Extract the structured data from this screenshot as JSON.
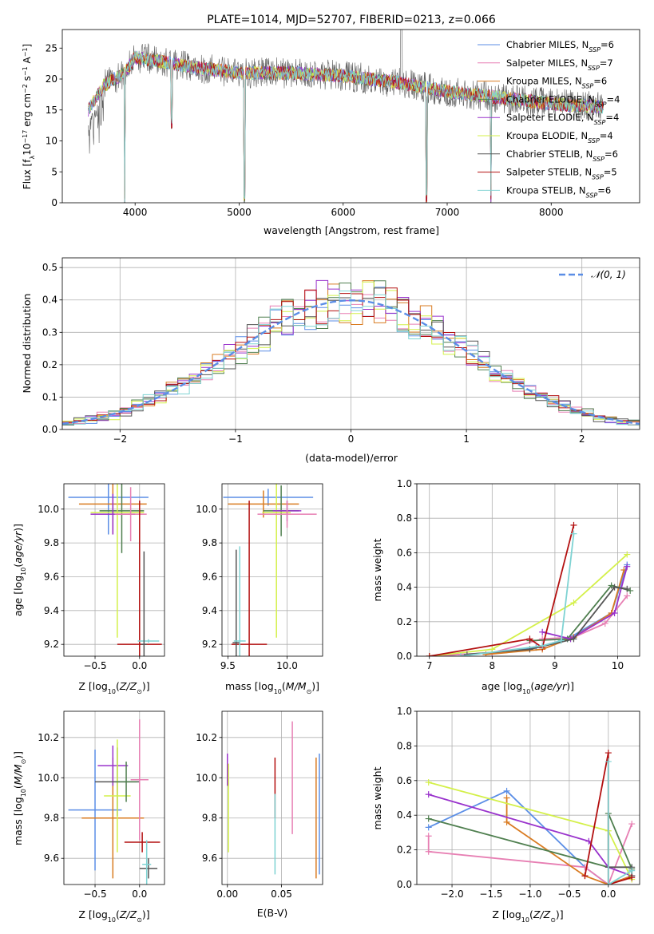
{
  "chart_data": [
    {
      "id": "spectrum",
      "type": "line",
      "title": "PLATE=1014, MJD=52707, FIBERID=0213, z=0.066",
      "xlabel": "wavelength [Angstrom, rest frame]",
      "ylabel": "Flux [f_λ 10^-17 erg cm^-2 s^-1 A^-1]",
      "xlim": [
        3300,
        8850
      ],
      "ylim": [
        0,
        28
      ],
      "xticks": [
        4000,
        5000,
        6000,
        7000,
        8000
      ],
      "yticks": [
        0,
        5,
        10,
        15,
        20,
        25
      ],
      "grid": false,
      "legend_position": "top-right",
      "series": [
        {
          "name": "Chabrier MILES, N_SSP=6",
          "color": "#5b8ee6"
        },
        {
          "name": "Salpeter MILES, N_SSP=7",
          "color": "#e77fb3"
        },
        {
          "name": "Kroupa MILES, N_SSP=6",
          "color": "#d97b21"
        },
        {
          "name": "Chabrier ELODIE, N_SSP=4",
          "color": "#4f7f4f"
        },
        {
          "name": "Salpeter ELODIE, N_SSP=4",
          "color": "#9932cc"
        },
        {
          "name": "Kroupa ELODIE, N_SSP=4",
          "color": "#d4f04a"
        },
        {
          "name": "Chabrier STELIB, N_SSP=6",
          "color": "#555555"
        },
        {
          "name": "Salpeter STELIB, N_SSP=5",
          "color": "#b31010"
        },
        {
          "name": "Kroupa STELIB, N_SSP=6",
          "color": "#7fd3d3"
        }
      ],
      "data_trend": [
        [
          3550,
          15
        ],
        [
          3700,
          19
        ],
        [
          3900,
          21
        ],
        [
          4000,
          23.5
        ],
        [
          4200,
          23
        ],
        [
          4500,
          22
        ],
        [
          5000,
          21
        ],
        [
          5500,
          21
        ],
        [
          6000,
          20.5
        ],
        [
          6500,
          19.5
        ],
        [
          7000,
          18
        ],
        [
          7500,
          17
        ],
        [
          8000,
          16
        ],
        [
          8500,
          15.5
        ]
      ],
      "dips": [
        [
          3900,
          0
        ],
        [
          4350,
          12
        ],
        [
          5050,
          0
        ],
        [
          6800,
          0
        ],
        [
          7420,
          0
        ]
      ],
      "noise_amplitude": 2.5
    },
    {
      "id": "residual",
      "type": "line",
      "xlabel": "(data-model)/error",
      "ylabel": "Normed distribution",
      "xlim": [
        -2.5,
        2.5
      ],
      "ylim": [
        0,
        0.53
      ],
      "xticks": [
        -2,
        -1,
        0,
        1,
        2
      ],
      "yticks": [
        0.0,
        0.1,
        0.2,
        0.3,
        0.4,
        0.5
      ],
      "grid": true,
      "legend_position": "top-right",
      "legend": "𝒩(0, 1)",
      "gaussian": {
        "mean": 0,
        "sigma": 1,
        "color": "#5b8ee6"
      },
      "bin_width": 0.1,
      "histogram_colors": [
        "#5b8ee6",
        "#e77fb3",
        "#d97b21",
        "#4f7f4f",
        "#9932cc",
        "#d4f04a",
        "#555555",
        "#b31010",
        "#7fd3d3"
      ]
    },
    {
      "id": "age_vs_Z",
      "type": "scatter",
      "xlabel": "Z [log10(Z/Z⊙)]",
      "ylabel": "age  [log10(age/yr)]",
      "xlim": [
        -0.85,
        0.28
      ],
      "ylim": [
        9.13,
        10.15
      ],
      "xticks": [
        -0.5,
        0.0
      ],
      "yticks": [
        9.2,
        9.4,
        9.6,
        9.8,
        10.0
      ],
      "grid": true,
      "points": [
        {
          "x": -0.35,
          "y": 10.07,
          "xerr": 0.45,
          "yerr": 0.22,
          "c": "#5b8ee6"
        },
        {
          "x": -0.3,
          "y": 10.03,
          "xerr": 0.38,
          "yerr": 0.18,
          "c": "#d97b21"
        },
        {
          "x": -0.2,
          "y": 9.99,
          "xerr": 0.25,
          "yerr": 0.25,
          "c": "#4f7f4f"
        },
        {
          "x": -0.25,
          "y": 9.98,
          "xerr": 0.3,
          "yerr": 0.74,
          "c": "#d4f04a"
        },
        {
          "x": -0.3,
          "y": 9.97,
          "xerr": 0.25,
          "yerr": 0.12,
          "c": "#9932cc"
        },
        {
          "x": -0.1,
          "y": 9.97,
          "xerr": 0.18,
          "yerr": 0.16,
          "c": "#e77fb3"
        },
        {
          "x": 0.0,
          "y": 9.2,
          "xerr": 0.25,
          "yerr": 0.85,
          "c": "#b31010"
        },
        {
          "x": 0.1,
          "y": 9.22,
          "xerr": 0.12,
          "yerr": 0.01,
          "c": "#7fd3d3"
        },
        {
          "x": 0.05,
          "y": 9.2,
          "xerr": 0.03,
          "yerr": 0.55,
          "c": "#555555"
        }
      ]
    },
    {
      "id": "age_vs_mass",
      "type": "scatter",
      "xlabel": "mass [log10(M/M⊙)]",
      "xlim": [
        9.45,
        10.3
      ],
      "ylim": [
        9.13,
        10.15
      ],
      "xticks": [
        9.5,
        10.0
      ],
      "yticks": [
        9.2,
        9.4,
        9.6,
        9.8,
        10.0
      ],
      "grid": true,
      "points": [
        {
          "x": 9.84,
          "y": 10.07,
          "xerr": 0.38,
          "yerr": 0.05,
          "c": "#5b8ee6"
        },
        {
          "x": 9.8,
          "y": 10.03,
          "xerr": 0.3,
          "yerr": 0.08,
          "c": "#d97b21"
        },
        {
          "x": 9.95,
          "y": 9.99,
          "xerr": 0.15,
          "yerr": 0.15,
          "c": "#4f7f4f"
        },
        {
          "x": 9.91,
          "y": 9.98,
          "xerr": 0.12,
          "yerr": 0.74,
          "c": "#d4f04a"
        },
        {
          "x": 10.0,
          "y": 9.99,
          "xerr": 0.12,
          "yerr": 0.06,
          "c": "#9932cc"
        },
        {
          "x": 10.0,
          "y": 9.97,
          "xerr": 0.25,
          "yerr": 0.08,
          "c": "#e77fb3"
        },
        {
          "x": 9.68,
          "y": 9.2,
          "xerr": 0.15,
          "yerr": 0.85,
          "c": "#b31010"
        },
        {
          "x": 9.57,
          "y": 9.21,
          "xerr": 0.03,
          "yerr": 0.55,
          "c": "#555555"
        },
        {
          "x": 9.6,
          "y": 9.22,
          "xerr": 0.05,
          "yerr": 0.56,
          "c": "#7fd3d3"
        }
      ]
    },
    {
      "id": "weight_vs_age",
      "type": "line",
      "xlabel": "age  [log10(age/yr)]",
      "ylabel": "mass weight",
      "xlim": [
        6.8,
        10.35
      ],
      "ylim": [
        0.0,
        1.0
      ],
      "xticks": [
        7,
        8,
        9,
        10
      ],
      "yticks": [
        0.0,
        0.2,
        0.4,
        0.6,
        0.8,
        1.0
      ],
      "grid": true,
      "series": [
        {
          "c": "#5b8ee6",
          "pts": [
            [
              7.0,
              0.0
            ],
            [
              8.0,
              0.02
            ],
            [
              8.7,
              0.05
            ],
            [
              9.2,
              0.1
            ],
            [
              9.9,
              0.25
            ],
            [
              10.15,
              0.53
            ]
          ]
        },
        {
          "c": "#e77fb3",
          "pts": [
            [
              7.0,
              0.0
            ],
            [
              8.0,
              0.02
            ],
            [
              8.8,
              0.1
            ],
            [
              9.3,
              0.11
            ],
            [
              9.8,
              0.19
            ],
            [
              10.15,
              0.35
            ]
          ]
        },
        {
          "c": "#d97b21",
          "pts": [
            [
              7.9,
              0.01
            ],
            [
              8.8,
              0.04
            ],
            [
              9.3,
              0.11
            ],
            [
              9.9,
              0.25
            ],
            [
              10.1,
              0.5
            ]
          ]
        },
        {
          "c": "#4f7f4f",
          "pts": [
            [
              8.6,
              0.09
            ],
            [
              9.2,
              0.1
            ],
            [
              9.9,
              0.41
            ],
            [
              10.2,
              0.38
            ]
          ]
        },
        {
          "c": "#9932cc",
          "pts": [
            [
              8.8,
              0.14
            ],
            [
              9.25,
              0.1
            ],
            [
              9.95,
              0.25
            ],
            [
              10.15,
              0.52
            ]
          ]
        },
        {
          "c": "#d4f04a",
          "pts": [
            [
              7.0,
              0.0
            ],
            [
              8.0,
              0.04
            ],
            [
              9.3,
              0.31
            ],
            [
              10.15,
              0.59
            ]
          ]
        },
        {
          "c": "#555555",
          "pts": [
            [
              7.6,
              0.01
            ],
            [
              8.6,
              0.04
            ],
            [
              9.3,
              0.1
            ],
            [
              9.95,
              0.4
            ],
            [
              10.15,
              0.39
            ]
          ]
        },
        {
          "c": "#b31010",
          "pts": [
            [
              7.0,
              0.0
            ],
            [
              8.6,
              0.1
            ],
            [
              8.8,
              0.05
            ],
            [
              9.3,
              0.76
            ]
          ]
        },
        {
          "c": "#7fd3d3",
          "pts": [
            [
              7.5,
              0.0
            ],
            [
              8.8,
              0.06
            ],
            [
              9.1,
              0.09
            ],
            [
              9.3,
              0.71
            ]
          ]
        }
      ]
    },
    {
      "id": "mass_vs_Z",
      "type": "scatter",
      "xlabel": "Z [log10(Z/Z⊙)]",
      "ylabel": "mass [log10(M/M⊙)]",
      "xlim": [
        -0.85,
        0.28
      ],
      "ylim": [
        9.47,
        10.33
      ],
      "xticks": [
        -0.5,
        0.0
      ],
      "yticks": [
        9.6,
        9.8,
        10.0,
        10.2
      ],
      "grid": true,
      "points": [
        {
          "x": -0.5,
          "y": 9.84,
          "xerr": 0.3,
          "yerr": 0.3,
          "c": "#5b8ee6"
        },
        {
          "x": -0.3,
          "y": 9.8,
          "xerr": 0.35,
          "yerr": 0.3,
          "c": "#d97b21"
        },
        {
          "x": -0.3,
          "y": 10.06,
          "xerr": 0.17,
          "yerr": 0.1,
          "c": "#9932cc"
        },
        {
          "x": -0.25,
          "y": 9.98,
          "xerr": 0.25,
          "yerr": 0.17,
          "c": "#555555"
        },
        {
          "x": -0.25,
          "y": 9.91,
          "xerr": 0.15,
          "yerr": 0.28,
          "c": "#d4f04a"
        },
        {
          "x": -0.15,
          "y": 9.98,
          "xerr": 0.12,
          "yerr": 0.1,
          "c": "#4f7f4f"
        },
        {
          "x": 0.0,
          "y": 9.99,
          "xerr": 0.1,
          "yerr": 0.3,
          "c": "#e77fb3"
        },
        {
          "x": 0.03,
          "y": 9.68,
          "xerr": 0.2,
          "yerr": 0.05,
          "c": "#b31010"
        },
        {
          "x": 0.1,
          "y": 9.55,
          "xerr": 0.1,
          "yerr": 0.05,
          "c": "#555555"
        },
        {
          "x": 0.08,
          "y": 9.57,
          "xerr": 0.05,
          "yerr": 0.12,
          "c": "#7fd3d3"
        }
      ]
    },
    {
      "id": "mass_vs_ebv",
      "type": "scatter",
      "xlabel": "E(B-V)",
      "xlim": [
        -0.005,
        0.088
      ],
      "ylim": [
        9.47,
        10.33
      ],
      "xticks": [
        0.0,
        0.05
      ],
      "yticks": [
        9.6,
        9.8,
        10.0,
        10.2
      ],
      "grid": true,
      "points": [
        {
          "x": 0.0,
          "y": 10.04,
          "yerr": 0.08,
          "c": "#9932cc"
        },
        {
          "x": 0.001,
          "y": 9.85,
          "yerr": 0.22,
          "c": "#d4f04a"
        },
        {
          "x": 0.044,
          "y": 9.95,
          "yerr": 0.15,
          "c": "#b31010"
        },
        {
          "x": 0.044,
          "y": 9.72,
          "yerr": 0.2,
          "c": "#7fd3d3"
        },
        {
          "x": 0.06,
          "y": 10.0,
          "yerr": 0.28,
          "c": "#e77fb3"
        },
        {
          "x": 0.082,
          "y": 9.8,
          "yerr": 0.3,
          "c": "#d97b21"
        },
        {
          "x": 0.085,
          "y": 9.82,
          "yerr": 0.3,
          "c": "#5b8ee6"
        }
      ]
    },
    {
      "id": "weight_vs_Z",
      "type": "line",
      "xlabel": "Z [log10(Z/Z⊙)]",
      "ylabel": "mass weight",
      "xlim": [
        -2.45,
        0.4
      ],
      "ylim": [
        0.0,
        1.0
      ],
      "xticks": [
        -2.0,
        -1.5,
        -1.0,
        -0.5,
        0.0
      ],
      "yticks": [
        0.0,
        0.2,
        0.4,
        0.6,
        0.8,
        1.0
      ],
      "grid": true,
      "series": [
        {
          "c": "#5b8ee6",
          "pts": [
            [
              -2.3,
              0.33
            ],
            [
              -1.3,
              0.54
            ],
            [
              -0.3,
              0.1
            ],
            [
              0.0,
              0.0
            ],
            [
              0.3,
              0.05
            ]
          ]
        },
        {
          "c": "#e77fb3",
          "pts": [
            [
              -2.3,
              0.28
            ],
            [
              -2.3,
              0.19
            ],
            [
              -0.3,
              0.1
            ],
            [
              0.0,
              0.0
            ],
            [
              0.3,
              0.35
            ]
          ]
        },
        {
          "c": "#d97b21",
          "pts": [
            [
              -1.3,
              0.5
            ],
            [
              -1.3,
              0.36
            ],
            [
              -0.3,
              0.05
            ],
            [
              0.0,
              0.0
            ],
            [
              0.3,
              0.05
            ]
          ]
        },
        {
          "c": "#4f7f4f",
          "pts": [
            [
              -2.3,
              0.38
            ],
            [
              0.0,
              0.1
            ],
            [
              0.0,
              0.41
            ],
            [
              0.3,
              0.09
            ]
          ]
        },
        {
          "c": "#9932cc",
          "pts": [
            [
              -2.3,
              0.52
            ],
            [
              -0.25,
              0.25
            ],
            [
              0.0,
              0.1
            ],
            [
              0.3,
              0.05
            ]
          ]
        },
        {
          "c": "#d4f04a",
          "pts": [
            [
              -2.3,
              0.59
            ],
            [
              0.0,
              0.31
            ],
            [
              0.3,
              0.03
            ]
          ]
        },
        {
          "c": "#555555",
          "pts": [
            [
              0.0,
              0.1
            ],
            [
              0.3,
              0.1
            ],
            [
              0.3,
              0.05
            ]
          ]
        },
        {
          "c": "#b31010",
          "pts": [
            [
              -0.3,
              0.05
            ],
            [
              0.0,
              0.76
            ],
            [
              0.0,
              0.0
            ],
            [
              0.3,
              0.04
            ]
          ]
        },
        {
          "c": "#7fd3d3",
          "pts": [
            [
              0.0,
              0.71
            ],
            [
              0.0,
              0.0
            ],
            [
              0.3,
              0.08
            ]
          ]
        }
      ]
    }
  ]
}
